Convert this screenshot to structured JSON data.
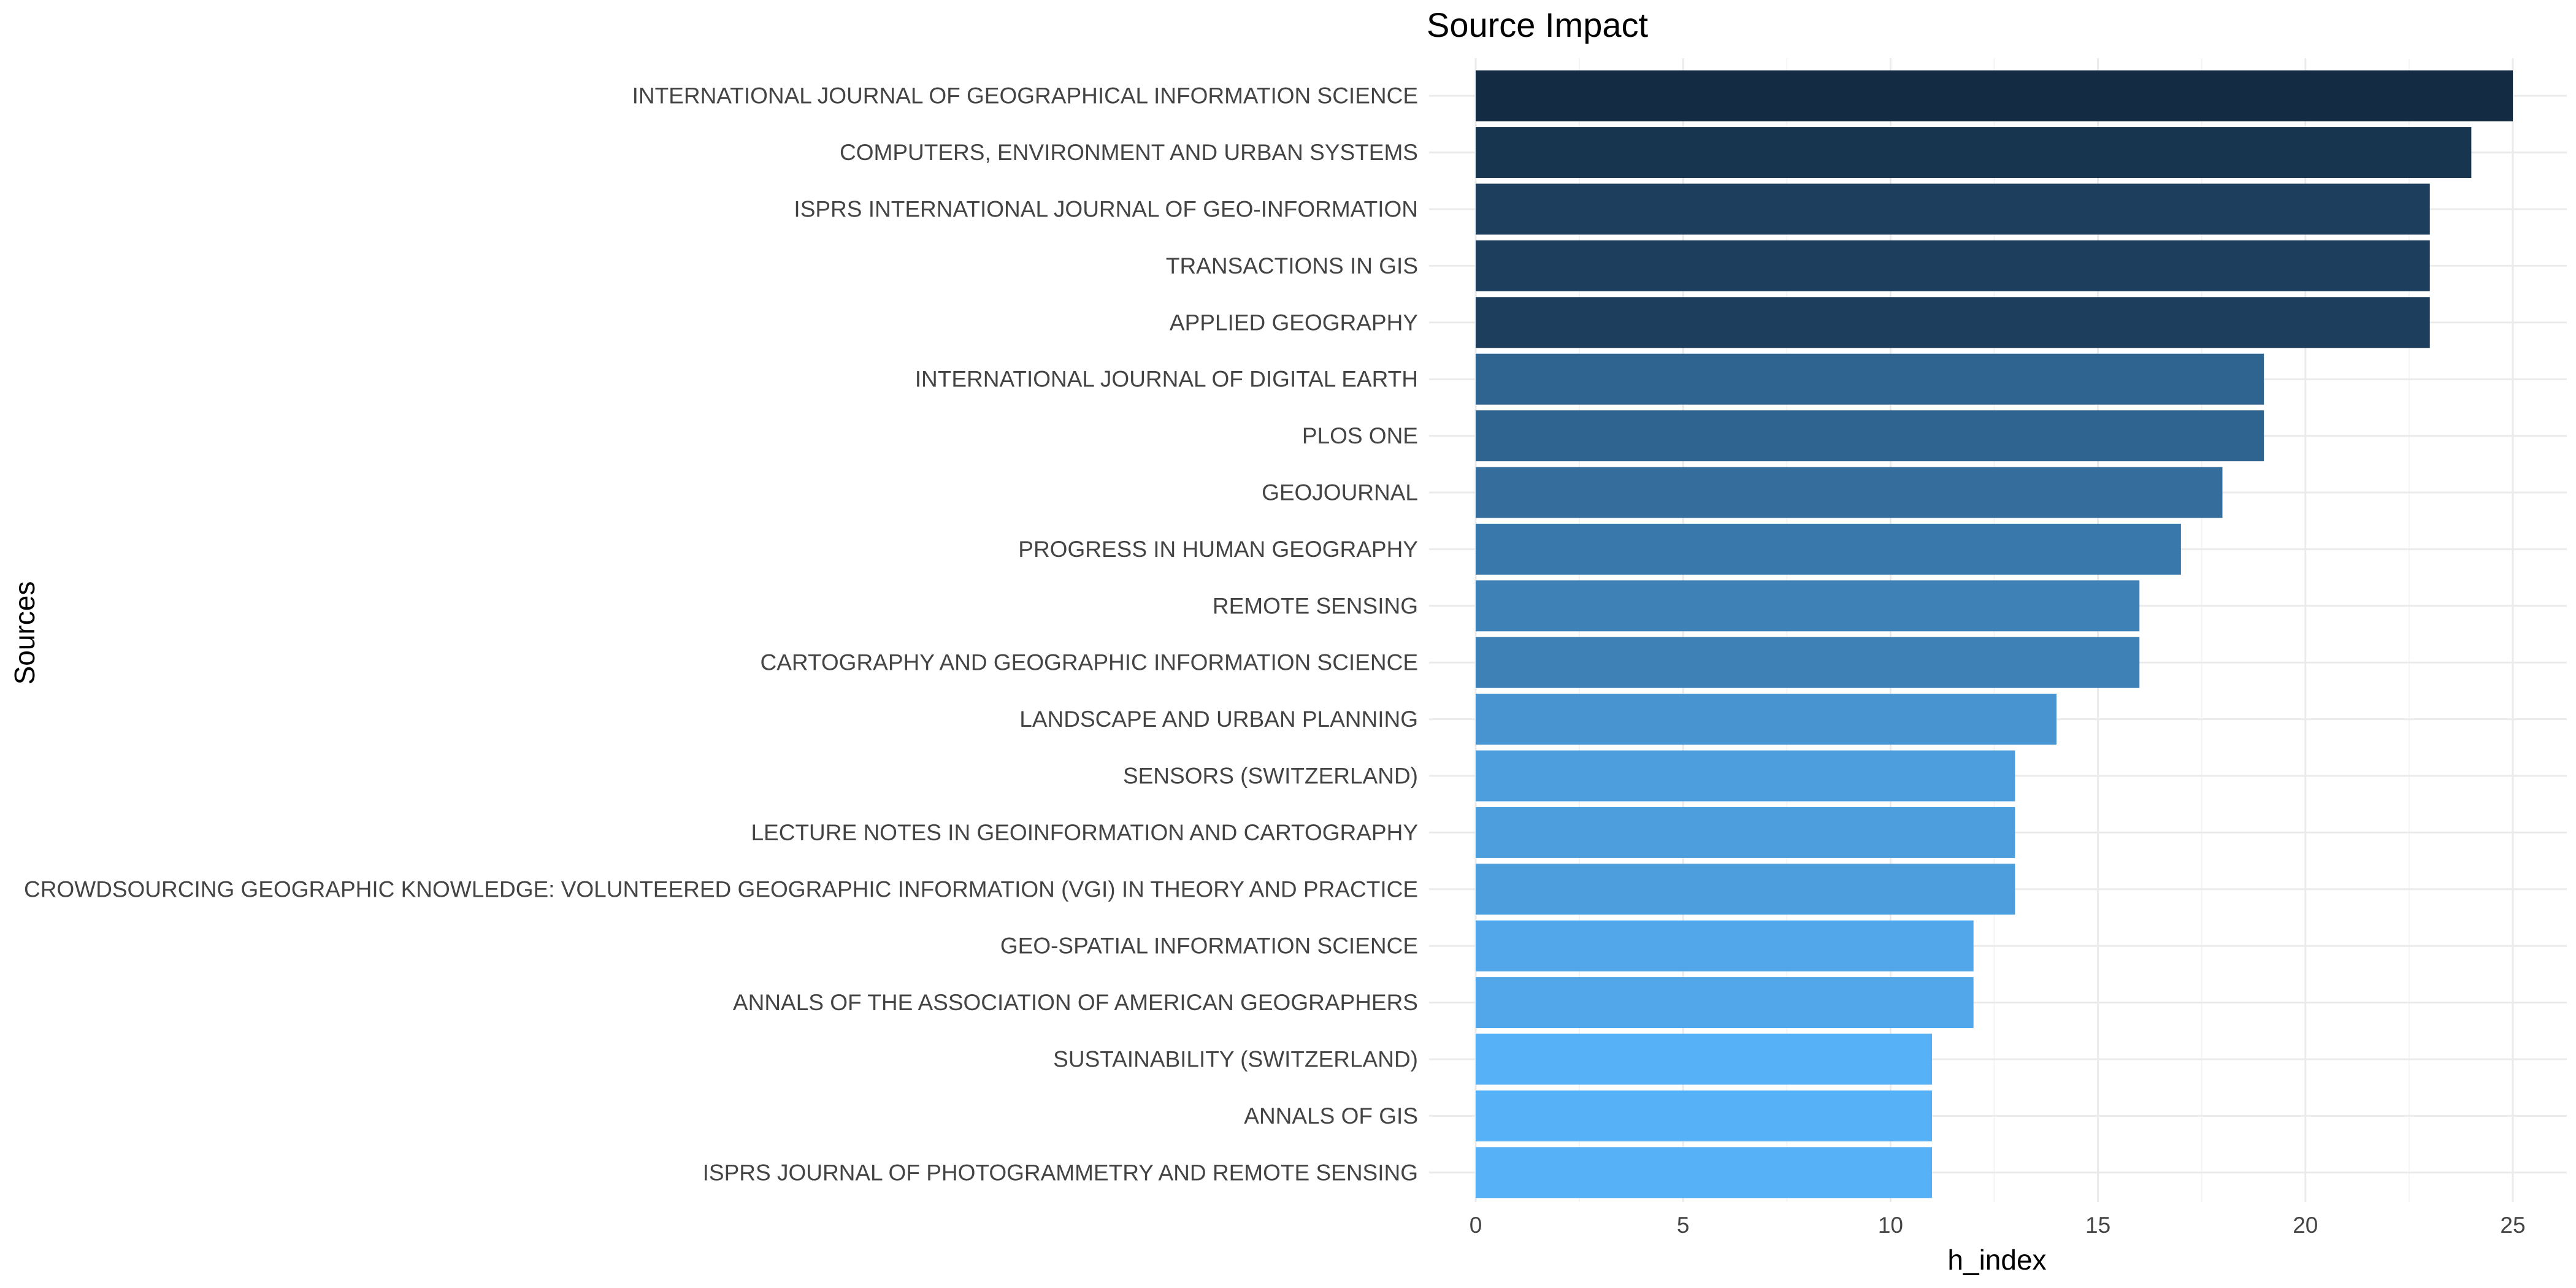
{
  "chart_data": {
    "type": "bar",
    "orientation": "horizontal",
    "title": "Source Impact",
    "xlabel": "h_index",
    "ylabel": "Sources",
    "xlim": [
      0,
      26
    ],
    "xticks": [
      0,
      5,
      10,
      15,
      20,
      25
    ],
    "grid": true,
    "legend": "none",
    "color_scale": {
      "low": "#56B1F7",
      "high": "#132B43"
    },
    "categories": [
      "INTERNATIONAL JOURNAL OF GEOGRAPHICAL INFORMATION SCIENCE",
      "COMPUTERS, ENVIRONMENT AND URBAN SYSTEMS",
      "ISPRS INTERNATIONAL JOURNAL OF GEO-INFORMATION",
      "TRANSACTIONS IN GIS",
      "APPLIED GEOGRAPHY",
      "INTERNATIONAL JOURNAL OF DIGITAL EARTH",
      "PLOS ONE",
      "GEOJOURNAL",
      "PROGRESS IN HUMAN GEOGRAPHY",
      "REMOTE SENSING",
      "CARTOGRAPHY AND GEOGRAPHIC INFORMATION SCIENCE",
      "LANDSCAPE AND URBAN PLANNING",
      "SENSORS (SWITZERLAND)",
      "LECTURE NOTES IN GEOINFORMATION AND CARTOGRAPHY",
      "CROWDSOURCING GEOGRAPHIC KNOWLEDGE: VOLUNTEERED GEOGRAPHIC INFORMATION (VGI) IN THEORY AND PRACTICE",
      "GEO-SPATIAL INFORMATION SCIENCE",
      "ANNALS OF THE ASSOCIATION OF AMERICAN GEOGRAPHERS",
      "SUSTAINABILITY (SWITZERLAND)",
      "ANNALS OF GIS",
      "ISPRS JOURNAL OF PHOTOGRAMMETRY AND REMOTE SENSING"
    ],
    "values": [
      25,
      24,
      23,
      23,
      23,
      19,
      19,
      18,
      17,
      16,
      16,
      14,
      13,
      13,
      13,
      12,
      12,
      11,
      11,
      11
    ]
  }
}
